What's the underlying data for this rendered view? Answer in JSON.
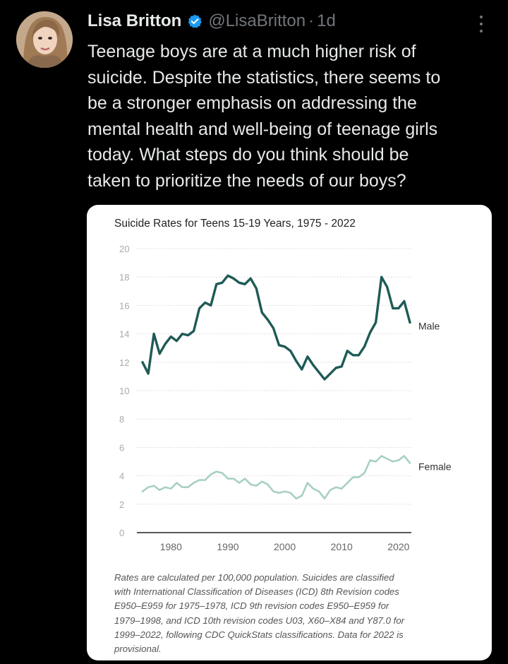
{
  "tweet": {
    "author_name": "Lisa Britton",
    "handle": "@LisaBritton",
    "separator": "·",
    "time": "1d",
    "text_lines": [
      "Teenage boys are at a much higher risk of",
      "suicide. Despite the statistics, there seems to",
      "be a stronger emphasis on addressing the",
      "mental health and well-being of teenage girls",
      "today. What steps do you think should be",
      "taken to prioritize the needs of our boys?"
    ],
    "verified_color": "#1d9bf0"
  },
  "chart_data": {
    "type": "line",
    "title": "Suicide Rates for Teens 15-19 Years, 1975 - 2022",
    "xlabel": "",
    "ylabel": "",
    "xlim": [
      1975,
      2022
    ],
    "ylim": [
      0,
      20
    ],
    "x_ticks": [
      1980,
      1990,
      2000,
      2010,
      2020
    ],
    "y_ticks": [
      0,
      2,
      4,
      6,
      8,
      10,
      12,
      14,
      16,
      18,
      20
    ],
    "grid": "horizontal dotted",
    "legend": "direct labels at right end of lines",
    "x": [
      1975,
      1976,
      1977,
      1978,
      1979,
      1980,
      1981,
      1982,
      1983,
      1984,
      1985,
      1986,
      1987,
      1988,
      1989,
      1990,
      1991,
      1992,
      1993,
      1994,
      1995,
      1996,
      1997,
      1998,
      1999,
      2000,
      2001,
      2002,
      2003,
      2004,
      2005,
      2006,
      2007,
      2008,
      2009,
      2010,
      2011,
      2012,
      2013,
      2014,
      2015,
      2016,
      2017,
      2018,
      2019,
      2020,
      2021,
      2022
    ],
    "series": [
      {
        "name": "Male",
        "color": "#1e5a55",
        "values": [
          12.0,
          11.2,
          14.0,
          12.6,
          13.3,
          13.8,
          13.5,
          14.0,
          13.9,
          14.2,
          15.8,
          16.2,
          16.0,
          17.5,
          17.6,
          18.1,
          17.9,
          17.6,
          17.5,
          17.9,
          17.2,
          15.5,
          15.0,
          14.4,
          13.2,
          13.1,
          12.8,
          12.1,
          11.5,
          12.4,
          11.8,
          11.3,
          10.8,
          11.2,
          11.6,
          11.7,
          12.8,
          12.5,
          12.5,
          13.1,
          14.1,
          14.8,
          18.0,
          17.3,
          15.8,
          15.8,
          16.3,
          14.8
        ]
      },
      {
        "name": "Female",
        "color": "#a8d0c0",
        "values": [
          2.9,
          3.2,
          3.3,
          3.0,
          3.2,
          3.1,
          3.5,
          3.2,
          3.2,
          3.5,
          3.7,
          3.7,
          4.1,
          4.3,
          4.2,
          3.8,
          3.8,
          3.5,
          3.8,
          3.4,
          3.3,
          3.6,
          3.4,
          2.9,
          2.8,
          2.9,
          2.8,
          2.4,
          2.6,
          3.5,
          3.1,
          2.9,
          2.4,
          3.0,
          3.2,
          3.1,
          3.5,
          3.9,
          3.9,
          4.2,
          5.1,
          5.0,
          5.4,
          5.2,
          5.0,
          5.1,
          5.4,
          4.9
        ]
      }
    ],
    "note_lines": [
      "Rates are calculated per 100,000 population. Suicides are classified",
      "with International Classification of Diseases (ICD) 8th Revision codes",
      "E950–E959 for 1975–1978, ICD 9th revision codes E950–E959 for",
      "1979–1998, and ICD 10th revision codes U03, X60–X84 and Y87.0 for",
      "1999–2022, following CDC QuickStats classifications. Data for 2022 is",
      "provisional."
    ]
  }
}
